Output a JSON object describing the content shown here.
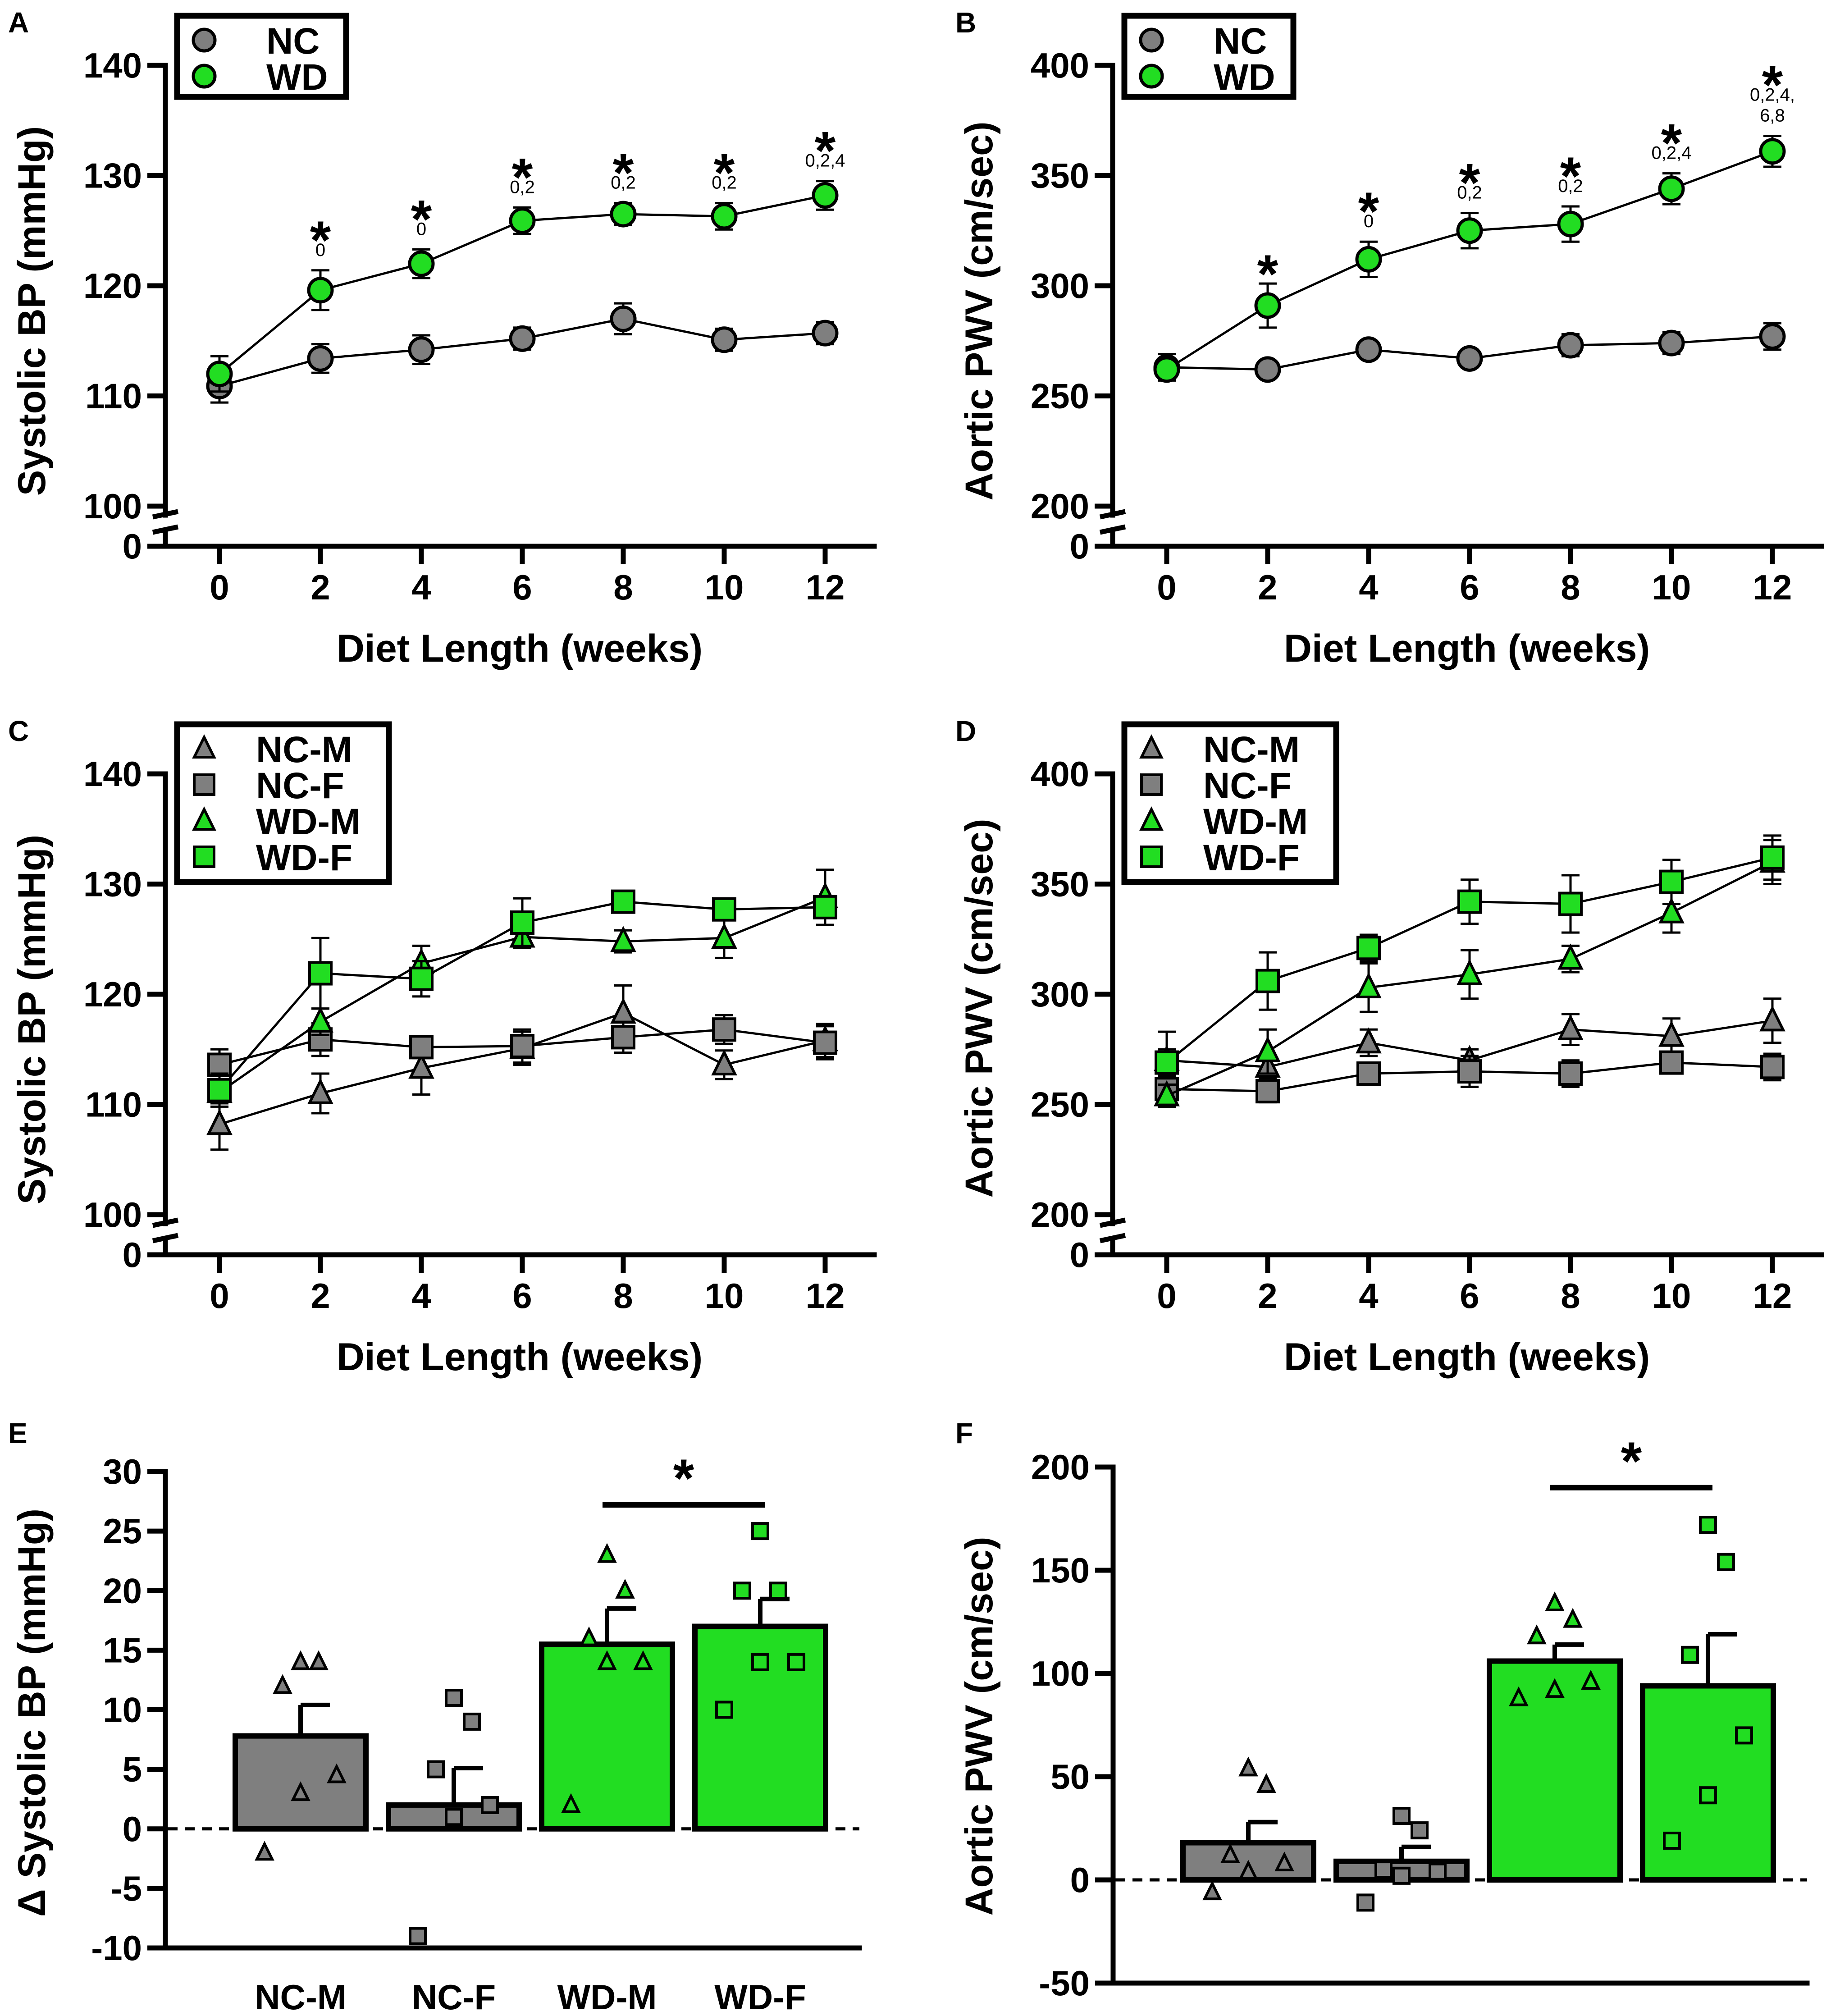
{
  "colors": {
    "nc": "#7f7f7f",
    "wd": "#22dd22",
    "black": "#000000"
  },
  "chart_data": [
    {
      "panel": "A",
      "type": "line",
      "ylabel": "Systolic BP (mmHg)",
      "xlabel": "Diet Length (weeks)",
      "x": [
        0,
        2,
        4,
        6,
        8,
        10,
        12
      ],
      "xticks": [
        "0",
        "2",
        "4",
        "6",
        "8",
        "10",
        "12"
      ],
      "yticks": [
        "140",
        "130",
        "120",
        "110",
        "100",
        "0"
      ],
      "ylim": [
        100,
        140
      ],
      "axis_break": true,
      "legend": [
        "NC",
        "WD"
      ],
      "series": [
        {
          "name": "NC",
          "marker": "circle",
          "color": "nc",
          "values": [
            110.9,
            113.4,
            114.2,
            115.2,
            117.0,
            115.1,
            115.7
          ],
          "err": [
            1.5,
            1.3,
            1.3,
            1.0,
            1.4,
            1.0,
            1.0
          ]
        },
        {
          "name": "WD",
          "marker": "circle",
          "color": "wd",
          "values": [
            112.0,
            119.6,
            122.0,
            125.9,
            126.5,
            126.3,
            128.2
          ],
          "err": [
            1.6,
            1.8,
            1.3,
            1.2,
            1.0,
            1.2,
            1.3
          ]
        }
      ],
      "annotations": [
        {
          "x": 2,
          "star": "*",
          "text": "0"
        },
        {
          "x": 4,
          "star": "*",
          "text": "0"
        },
        {
          "x": 6,
          "star": "*",
          "text": "0,2"
        },
        {
          "x": 8,
          "star": "*",
          "text": "0,2"
        },
        {
          "x": 10,
          "star": "*",
          "text": "0,2"
        },
        {
          "x": 12,
          "star": "*",
          "text": "0,2,4"
        }
      ]
    },
    {
      "panel": "B",
      "type": "line",
      "ylabel": "Aortic PWV (cm/sec)",
      "xlabel": "Diet Length (weeks)",
      "x": [
        0,
        2,
        4,
        6,
        8,
        10,
        12
      ],
      "xticks": [
        "0",
        "2",
        "4",
        "6",
        "8",
        "10",
        "12"
      ],
      "yticks": [
        "400",
        "350",
        "300",
        "250",
        "200",
        "0"
      ],
      "ylim": [
        200,
        400
      ],
      "axis_break": true,
      "legend": [
        "NC",
        "WD"
      ],
      "series": [
        {
          "name": "NC",
          "marker": "circle",
          "color": "nc",
          "values": [
            263,
            262,
            271,
            267,
            273,
            274,
            277
          ],
          "err": [
            6,
            3,
            4,
            4,
            5,
            5,
            6
          ]
        },
        {
          "name": "WD",
          "marker": "circle",
          "color": "wd",
          "values": [
            262,
            291,
            312,
            325,
            328,
            344,
            361
          ],
          "err": [
            5,
            10,
            8,
            8,
            8,
            7,
            7
          ]
        }
      ],
      "annotations": [
        {
          "x": 2,
          "star": "*",
          "text": ""
        },
        {
          "x": 4,
          "star": "*",
          "text": "0"
        },
        {
          "x": 6,
          "star": "*",
          "text": "0,2"
        },
        {
          "x": 8,
          "star": "*",
          "text": "0,2"
        },
        {
          "x": 10,
          "star": "*",
          "text": "0,2,4"
        },
        {
          "x": 12,
          "star": "*",
          "text": "0,2,4,",
          "text2": "6,8"
        }
      ]
    },
    {
      "panel": "C",
      "type": "line",
      "ylabel": "Systolic BP (mmHg)",
      "xlabel": "Diet Length (weeks)",
      "x": [
        0,
        2,
        4,
        6,
        8,
        10,
        12
      ],
      "xticks": [
        "0",
        "2",
        "4",
        "6",
        "8",
        "10",
        "12"
      ],
      "yticks": [
        "140",
        "130",
        "120",
        "110",
        "100",
        "0"
      ],
      "ylim": [
        100,
        140
      ],
      "axis_break": true,
      "legend": [
        "NC-M",
        "NC-F",
        "WD-M",
        "WD-F"
      ],
      "series": [
        {
          "name": "NC-M",
          "marker": "triangle",
          "color": "nc",
          "values": [
            108.2,
            111.0,
            113.3,
            115.1,
            118.3,
            113.6,
            115.8
          ],
          "err": [
            2.3,
            1.8,
            2.4,
            1.5,
            2.5,
            1.3,
            1.5
          ]
        },
        {
          "name": "NC-F",
          "marker": "square",
          "color": "nc",
          "values": [
            113.6,
            115.9,
            115.2,
            115.3,
            116.1,
            116.8,
            115.6
          ],
          "err": [
            1.4,
            1.5,
            1.0,
            1.5,
            1.4,
            1.3,
            1.5
          ]
        },
        {
          "name": "WD-M",
          "marker": "triangle",
          "color": "wd",
          "values": [
            111.1,
            117.5,
            122.8,
            125.2,
            124.8,
            125.1,
            128.8
          ],
          "err": [
            1.0,
            1.2,
            1.6,
            1.0,
            1.0,
            1.8,
            2.5
          ]
        },
        {
          "name": "WD-F",
          "marker": "square",
          "color": "wd",
          "values": [
            111.3,
            121.9,
            121.4,
            126.5,
            128.4,
            127.7,
            127.9
          ],
          "err": [
            1.5,
            3.2,
            1.6,
            2.2,
            0.8,
            0.8,
            0.8
          ]
        }
      ]
    },
    {
      "panel": "D",
      "type": "line",
      "ylabel": "Aortic PWV (cm/sec)",
      "xlabel": "Diet Length (weeks)",
      "x": [
        0,
        2,
        4,
        6,
        8,
        10,
        12
      ],
      "xticks": [
        "0",
        "2",
        "4",
        "6",
        "8",
        "10",
        "12"
      ],
      "yticks": [
        "400",
        "350",
        "300",
        "250",
        "200",
        "0"
      ],
      "ylim": [
        200,
        400
      ],
      "axis_break": true,
      "legend": [
        "NC-M",
        "NC-F",
        "WD-M",
        "WD-F"
      ],
      "series": [
        {
          "name": "NC-M",
          "marker": "triangle",
          "color": "nc",
          "values": [
            270,
            267,
            278,
            270,
            284,
            281,
            288
          ],
          "err": [
            13,
            5,
            6,
            5,
            7,
            8,
            10
          ]
        },
        {
          "name": "NC-F",
          "marker": "square",
          "color": "nc",
          "values": [
            257,
            256,
            264,
            265,
            264,
            269,
            267
          ],
          "err": [
            8,
            5,
            4,
            7,
            6,
            4,
            6
          ]
        },
        {
          "name": "WD-M",
          "marker": "triangle",
          "color": "wd",
          "values": [
            254,
            274,
            303,
            309,
            316,
            337,
            360
          ],
          "err": [
            5,
            10,
            11,
            11,
            6,
            9,
            10
          ]
        },
        {
          "name": "WD-F",
          "marker": "square",
          "color": "wd",
          "values": [
            269,
            306,
            321,
            342,
            341,
            351,
            362
          ],
          "err": [
            6,
            13,
            6,
            10,
            13,
            10,
            10
          ]
        }
      ]
    },
    {
      "panel": "E",
      "type": "bar",
      "ylabel": "Δ Systolic BP (mmHg)",
      "categories": [
        "NC-M",
        "NC-F",
        "WD-M",
        "WD-F"
      ],
      "ylim": [
        -10,
        30
      ],
      "yticks": [
        "30",
        "25",
        "20",
        "15",
        "10",
        "5",
        "0",
        "-5",
        "-10"
      ],
      "bars": [
        {
          "name": "NC-M",
          "value": 7.8,
          "sem": 2.6,
          "color": "nc",
          "marker": "triangle",
          "points": [
            -2,
            3,
            4.5,
            12,
            14,
            14
          ]
        },
        {
          "name": "NC-F",
          "value": 2.0,
          "sem": 3.1,
          "color": "nc",
          "marker": "square",
          "points": [
            -9,
            1,
            2,
            5,
            9,
            11
          ]
        },
        {
          "name": "WD-M",
          "value": 15.5,
          "sem": 3.0,
          "color": "wd",
          "marker": "triangle",
          "points": [
            2,
            14,
            14,
            16,
            20,
            23
          ]
        },
        {
          "name": "WD-F",
          "value": 17.0,
          "sem": 2.3,
          "color": "wd",
          "marker": "square",
          "points": [
            10,
            14,
            14,
            20,
            20,
            25
          ]
        }
      ],
      "significance": {
        "from": "WD-M",
        "to": "WD-F",
        "label": "*"
      }
    },
    {
      "panel": "F",
      "type": "bar",
      "ylabel": "Aortic PWV (cm/sec)",
      "categories": [
        "NC-M",
        "NC-F",
        "WD-M",
        "WD-F"
      ],
      "ylim": [
        -50,
        200
      ],
      "yticks": [
        "200",
        "150",
        "100",
        "50",
        "0",
        "-50"
      ],
      "bars": [
        {
          "name": "NC-M",
          "value": 18,
          "sem": 10,
          "color": "nc",
          "marker": "triangle",
          "points": [
            -6,
            4,
            8,
            12,
            46,
            54
          ]
        },
        {
          "name": "NC-F",
          "value": 9,
          "sem": 7,
          "color": "nc",
          "marker": "square",
          "points": [
            -11,
            2,
            4,
            5,
            24,
            31
          ]
        },
        {
          "name": "WD-M",
          "value": 106,
          "sem": 8,
          "color": "wd",
          "marker": "triangle",
          "points": [
            88,
            92,
            96,
            118,
            126,
            134
          ]
        },
        {
          "name": "WD-F",
          "value": 94,
          "sem": 25,
          "color": "wd",
          "marker": "square",
          "points": [
            19,
            41,
            70,
            109,
            154,
            172
          ]
        }
      ],
      "significance": {
        "from": "WD-M",
        "to": "WD-F",
        "label": "*"
      }
    }
  ]
}
